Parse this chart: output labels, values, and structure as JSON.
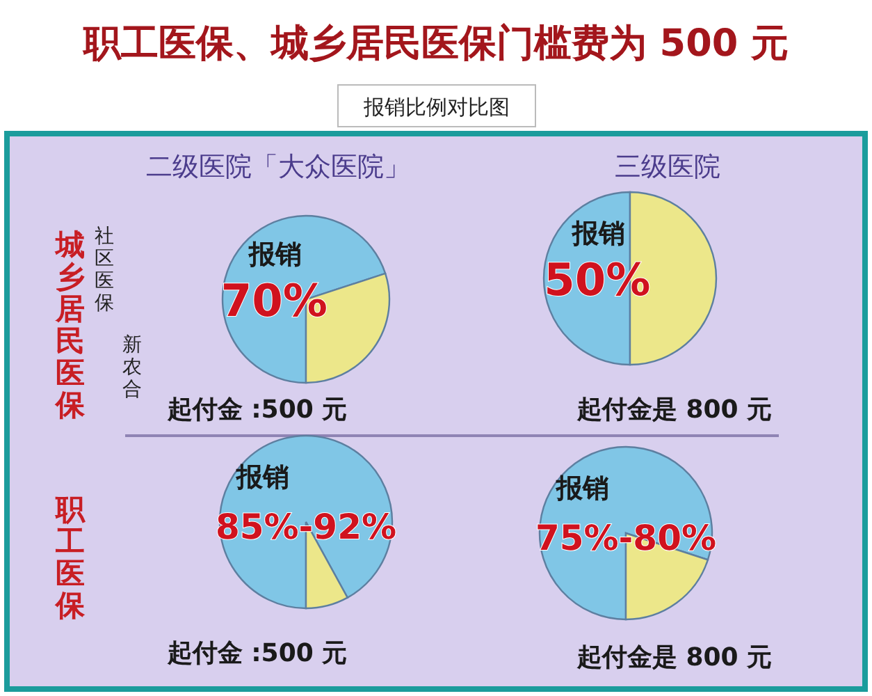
{
  "chart_data": [
    {
      "type": "pie",
      "title": "职工医保、城乡居民医保门槛费为 500 元",
      "subtitle": "报销比例对比图",
      "annotations": [
        "二级医院「大众医院」",
        "社区医保",
        "新农合"
      ],
      "ylabel": "城乡居民医保",
      "xlabel": "起付金 :500 元",
      "categories": [
        "报销",
        null
      ],
      "values": [
        70,
        30
      ],
      "colors": [
        "#80c6e6",
        "#ece78a"
      ],
      "value_labels": [
        "70%",
        null
      ]
    },
    {
      "type": "pie",
      "annotations": [
        "三级医院"
      ],
      "xlabel": "起付金是 800 元",
      "categories": [
        "报销",
        null
      ],
      "values": [
        50,
        50
      ],
      "colors": [
        "#80c6e6",
        "#ece78a"
      ],
      "value_labels": [
        "50%",
        null
      ]
    },
    {
      "type": "pie",
      "ylabel": "职工医保",
      "xlabel": "起付金 :500 元",
      "annotations": [
        "85%-92%"
      ],
      "categories": [
        "报销",
        null
      ],
      "values": [
        92,
        8
      ],
      "colors": [
        "#80c6e6",
        "#ece78a"
      ]
    },
    {
      "type": "pie",
      "xlabel": "起付金是 800 元",
      "annotations": [
        "75%-80%"
      ],
      "categories": [
        "报销",
        null
      ],
      "values": [
        80,
        20
      ],
      "colors": [
        "#80c6e6",
        "#ece78a"
      ]
    }
  ]
}
